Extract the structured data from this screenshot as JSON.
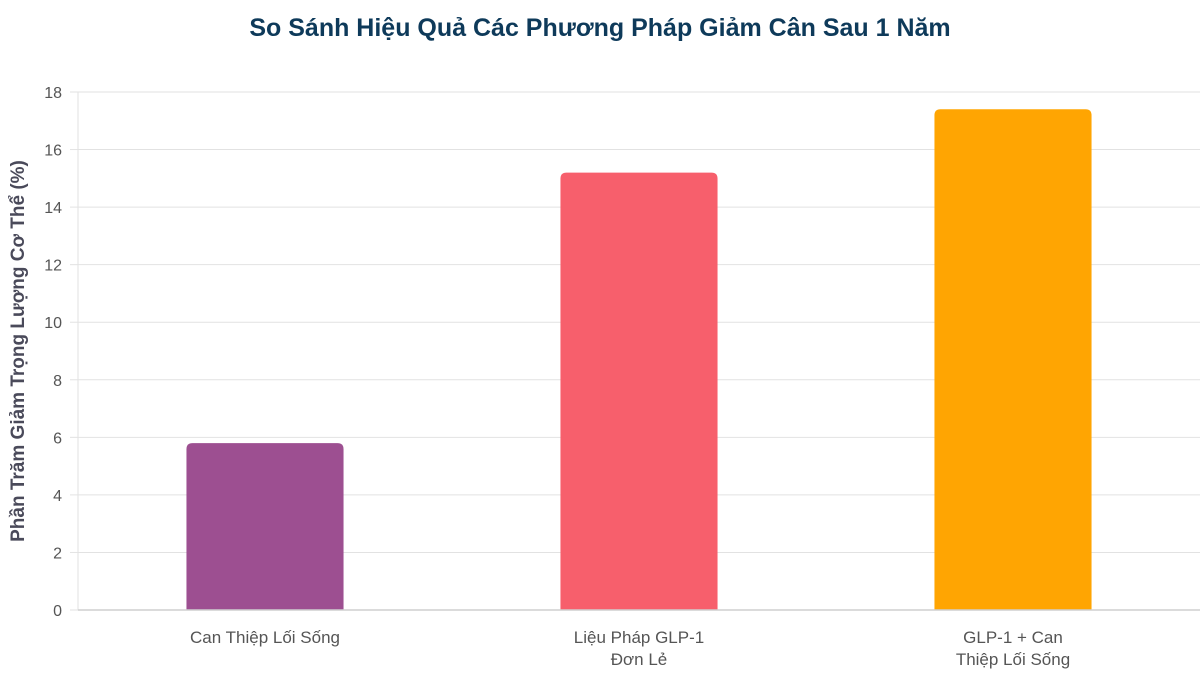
{
  "chart_data": {
    "type": "bar",
    "title": "So Sánh Hiệu Quả Các Phương Pháp Giảm Cân Sau 1 Năm",
    "xlabel": "",
    "ylabel": "Phần Trăm Giảm Trọng Lượng Cơ Thể (%)",
    "categories": [
      [
        "Can Thiệp Lối Sống"
      ],
      [
        "Liệu Pháp GLP-1",
        "Đơn Lẻ"
      ],
      [
        "GLP-1 + Can",
        "Thiệp Lối Sống"
      ]
    ],
    "values": [
      5.8,
      15.2,
      17.4
    ],
    "colors": [
      "#9d4f91",
      "#f75f6c",
      "#ffa502"
    ],
    "ylim": [
      0,
      18
    ],
    "yticks": [
      0,
      2,
      4,
      6,
      8,
      10,
      12,
      14,
      16,
      18
    ],
    "grid": true,
    "legend": "none"
  }
}
